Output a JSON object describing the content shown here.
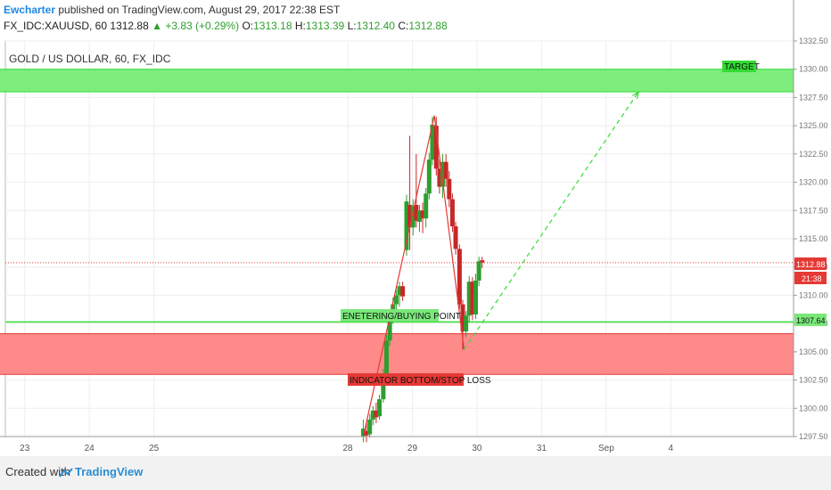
{
  "header": {
    "author": "Ewcharter",
    "published_text": "published on TradingView.com, August 29, 2017 22:38 EST",
    "symbol_line": "FX_IDC:XAUUSD, 60",
    "last": "1312.88",
    "change": "+3.83 (+0.29%)",
    "o_label": "O:",
    "o_value": "1313.18",
    "h_label": "H:",
    "h_value": "1313.39",
    "l_label": "L:",
    "l_value": "1312.40",
    "c_label": "C:",
    "c_value": "1312.88"
  },
  "footer": {
    "created_with": "Created with",
    "brand": "TradingView"
  },
  "colors": {
    "up": "#2e9e2e",
    "down": "#c62828",
    "target_zone": "#7ded7d",
    "stop_zone": "#ff8a8a",
    "line_green": "#33dd33",
    "line_red": "#e53935",
    "price_tag": "#e53935",
    "entry_tag": "#79e879"
  },
  "chart_data": {
    "type": "candlestick",
    "title": "GOLD / US DOLLAR, 60, FX_IDC",
    "ylim": [
      1297.5,
      1332.5
    ],
    "y_ticks": [
      "1297.50",
      "1300.00",
      "1302.50",
      "1305.00",
      "1307.50",
      "1310.00",
      "1312.50",
      "1315.00",
      "1317.50",
      "1320.00",
      "1322.50",
      "1325.00",
      "1327.50",
      "1330.00",
      "1332.50"
    ],
    "x_ticks": [
      {
        "label": "23",
        "day": 23
      },
      {
        "label": "24",
        "day": 24
      },
      {
        "label": "25",
        "day": 25
      },
      {
        "label": "28",
        "day": 28
      },
      {
        "label": "29",
        "day": 29
      },
      {
        "label": "30",
        "day": 30
      },
      {
        "label": "31",
        "day": 31
      },
      {
        "label": "Sep",
        "day": 32
      },
      {
        "label": "4",
        "day": 33
      }
    ],
    "last_price_label": "1312.88",
    "countdown_label": "21:38",
    "entry_price_label": "1307.64",
    "entry_price": 1307.64,
    "last_price": 1312.88,
    "candles": [
      {
        "t": 28.24,
        "o": 1297.5,
        "h": 1299.0,
        "l": 1297.0,
        "c": 1298.2
      },
      {
        "t": 28.29,
        "o": 1298.0,
        "h": 1298.8,
        "l": 1297.0,
        "c": 1297.6
      },
      {
        "t": 28.34,
        "o": 1297.7,
        "h": 1299.5,
        "l": 1297.4,
        "c": 1299.0
      },
      {
        "t": 28.39,
        "o": 1299.0,
        "h": 1300.2,
        "l": 1298.5,
        "c": 1299.8
      },
      {
        "t": 28.44,
        "o": 1299.8,
        "h": 1300.5,
        "l": 1298.7,
        "c": 1299.2
      },
      {
        "t": 28.49,
        "o": 1299.3,
        "h": 1301.2,
        "l": 1299.0,
        "c": 1300.8
      },
      {
        "t": 28.55,
        "o": 1300.8,
        "h": 1303.5,
        "l": 1300.5,
        "c": 1303.0
      },
      {
        "t": 28.6,
        "o": 1303.0,
        "h": 1306.5,
        "l": 1302.8,
        "c": 1306.0
      },
      {
        "t": 28.65,
        "o": 1306.0,
        "h": 1308.6,
        "l": 1305.5,
        "c": 1308.0
      },
      {
        "t": 28.7,
        "o": 1308.0,
        "h": 1309.8,
        "l": 1307.5,
        "c": 1309.2
      },
      {
        "t": 28.75,
        "o": 1309.2,
        "h": 1310.5,
        "l": 1308.5,
        "c": 1310.0
      },
      {
        "t": 28.8,
        "o": 1310.0,
        "h": 1311.2,
        "l": 1309.0,
        "c": 1310.8
      },
      {
        "t": 28.85,
        "o": 1310.8,
        "h": 1311.2,
        "l": 1309.5,
        "c": 1309.9
      },
      {
        "t": 28.91,
        "o": 1314.0,
        "h": 1318.9,
        "l": 1313.5,
        "c": 1318.3
      },
      {
        "t": 28.96,
        "o": 1318.0,
        "h": 1324.1,
        "l": 1314.0,
        "c": 1316.0
      },
      {
        "t": 29.01,
        "o": 1316.0,
        "h": 1318.5,
        "l": 1315.3,
        "c": 1317.9
      },
      {
        "t": 29.06,
        "o": 1318.0,
        "h": 1322.5,
        "l": 1316.0,
        "c": 1316.6
      },
      {
        "t": 29.11,
        "o": 1316.5,
        "h": 1318.0,
        "l": 1315.6,
        "c": 1317.5
      },
      {
        "t": 29.16,
        "o": 1317.5,
        "h": 1318.2,
        "l": 1315.5,
        "c": 1316.8
      },
      {
        "t": 29.21,
        "o": 1316.8,
        "h": 1319.5,
        "l": 1316.0,
        "c": 1319.0
      },
      {
        "t": 29.26,
        "o": 1319.0,
        "h": 1322.6,
        "l": 1318.5,
        "c": 1322.0
      },
      {
        "t": 29.31,
        "o": 1322.0,
        "h": 1325.8,
        "l": 1321.5,
        "c": 1325.1
      },
      {
        "t": 29.37,
        "o": 1325.0,
        "h": 1325.8,
        "l": 1320.6,
        "c": 1321.2
      },
      {
        "t": 29.42,
        "o": 1321.2,
        "h": 1322.0,
        "l": 1319.0,
        "c": 1319.6
      },
      {
        "t": 29.47,
        "o": 1319.6,
        "h": 1322.5,
        "l": 1318.6,
        "c": 1321.8
      },
      {
        "t": 29.52,
        "o": 1321.8,
        "h": 1322.5,
        "l": 1319.6,
        "c": 1320.3
      },
      {
        "t": 29.57,
        "o": 1320.3,
        "h": 1321.0,
        "l": 1317.8,
        "c": 1318.5
      },
      {
        "t": 29.62,
        "o": 1318.5,
        "h": 1319.0,
        "l": 1315.6,
        "c": 1316.1
      },
      {
        "t": 29.67,
        "o": 1316.1,
        "h": 1316.5,
        "l": 1313.6,
        "c": 1314.1
      },
      {
        "t": 29.73,
        "o": 1314.1,
        "h": 1314.5,
        "l": 1308.8,
        "c": 1309.2
      },
      {
        "t": 29.78,
        "o": 1309.2,
        "h": 1309.6,
        "l": 1305.2,
        "c": 1306.8
      },
      {
        "t": 29.83,
        "o": 1306.8,
        "h": 1308.6,
        "l": 1306.3,
        "c": 1308.2
      },
      {
        "t": 29.88,
        "o": 1308.2,
        "h": 1311.7,
        "l": 1307.6,
        "c": 1311.2
      },
      {
        "t": 29.93,
        "o": 1311.2,
        "h": 1311.6,
        "l": 1307.8,
        "c": 1308.3
      },
      {
        "t": 29.98,
        "o": 1308.3,
        "h": 1311.9,
        "l": 1307.9,
        "c": 1311.3
      },
      {
        "t": 30.03,
        "o": 1311.3,
        "h": 1313.4,
        "l": 1310.8,
        "c": 1313.0
      },
      {
        "t": 30.08,
        "o": 1313.1,
        "h": 1313.4,
        "l": 1312.4,
        "c": 1312.9
      }
    ],
    "zones": [
      {
        "name": "TARGET",
        "from": 1328.0,
        "to": 1330.0,
        "start": 22.0,
        "end": 34.9
      },
      {
        "name": "INDICATOR BOTTOM/STOP LOSS",
        "from": 1303.0,
        "to": 1306.6,
        "start": 22.0,
        "end": 34.9
      }
    ],
    "annotations": [
      {
        "text": "TARGET"
      },
      {
        "text": "ENETERING/BUYING POINT"
      },
      {
        "text": "INDICATOR BOTTOM/STOP LOSS"
      }
    ],
    "zigzag": [
      {
        "t": 28.24,
        "p": 1297.5
      },
      {
        "t": 29.34,
        "p": 1325.9
      },
      {
        "t": 29.8,
        "p": 1305.2
      }
    ],
    "projection": [
      {
        "t": 29.8,
        "p": 1305.2
      },
      {
        "t": 32.5,
        "p": 1328.0
      }
    ]
  }
}
